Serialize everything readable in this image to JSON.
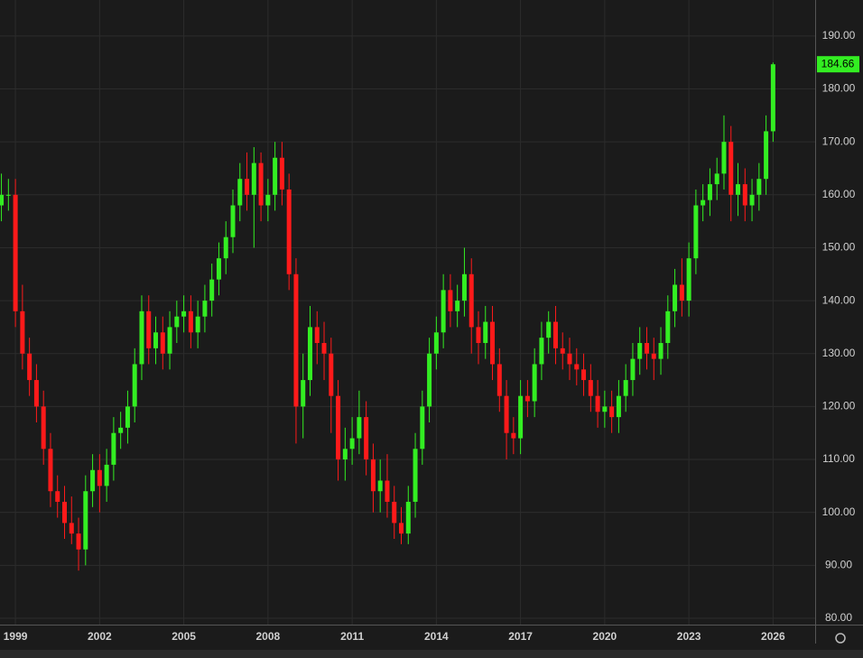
{
  "chart_data": {
    "type": "candlestick",
    "up_color": "#33ee22",
    "down_color": "#ff1a1a",
    "grid": true,
    "xlim": [
      1998.45,
      2027.5
    ],
    "ylim": [
      78.8,
      196.8
    ],
    "xticks": [
      1999,
      2002,
      2005,
      2008,
      2011,
      2014,
      2017,
      2020,
      2023,
      2026
    ],
    "yticks": [
      {
        "value": 80,
        "label": "80.00"
      },
      {
        "value": 90,
        "label": "90.00"
      },
      {
        "value": 100,
        "label": "100.00"
      },
      {
        "value": 110,
        "label": "110.00"
      },
      {
        "value": 120,
        "label": "120.00"
      },
      {
        "value": 130,
        "label": "130.00"
      },
      {
        "value": 140,
        "label": "140.00"
      },
      {
        "value": 150,
        "label": "150.00"
      },
      {
        "value": 160,
        "label": "160.00"
      },
      {
        "value": 170,
        "label": "170.00"
      },
      {
        "value": 180,
        "label": "180.00"
      },
      {
        "value": 190,
        "label": "190.00"
      }
    ],
    "x": [
      1998.5,
      1998.75,
      1999,
      1999.25,
      1999.5,
      1999.75,
      2000,
      2000.25,
      2000.5,
      2000.75,
      2001,
      2001.25,
      2001.5,
      2001.75,
      2002,
      2002.25,
      2002.5,
      2002.75,
      2003,
      2003.25,
      2003.5,
      2003.75,
      2004,
      2004.25,
      2004.5,
      2004.75,
      2005,
      2005.25,
      2005.5,
      2005.75,
      2006,
      2006.25,
      2006.5,
      2006.75,
      2007,
      2007.25,
      2007.5,
      2007.75,
      2008,
      2008.25,
      2008.5,
      2008.75,
      2009,
      2009.25,
      2009.5,
      2009.75,
      2010,
      2010.25,
      2010.5,
      2010.75,
      2011,
      2011.25,
      2011.5,
      2011.75,
      2012,
      2012.25,
      2012.5,
      2012.75,
      2013,
      2013.25,
      2013.5,
      2013.75,
      2014,
      2014.25,
      2014.5,
      2014.75,
      2015,
      2015.25,
      2015.5,
      2015.75,
      2016,
      2016.25,
      2016.5,
      2016.75,
      2017,
      2017.25,
      2017.5,
      2017.75,
      2018,
      2018.25,
      2018.5,
      2018.75,
      2019,
      2019.25,
      2019.5,
      2019.75,
      2020,
      2020.25,
      2020.5,
      2020.75,
      2021,
      2021.25,
      2021.5,
      2021.75,
      2022,
      2022.25,
      2022.5,
      2022.75,
      2023,
      2023.25,
      2023.5,
      2023.75,
      2024,
      2024.25,
      2024.5,
      2024.75,
      2025,
      2025.25,
      2025.5,
      2025.75,
      2026
    ],
    "open": [
      158,
      160,
      160,
      138,
      130,
      125,
      120,
      112,
      104,
      102,
      98,
      96,
      93,
      104,
      108,
      105,
      109,
      115,
      116,
      120,
      128,
      138,
      131,
      134,
      130,
      135,
      137,
      138,
      134,
      137,
      140,
      144,
      148,
      152,
      158,
      163,
      160,
      166,
      158,
      160,
      167,
      161,
      145,
      120,
      125,
      135,
      132,
      130,
      122,
      110,
      112,
      114,
      118,
      110,
      104,
      106,
      102,
      98,
      96,
      102,
      112,
      120,
      130,
      134,
      142,
      138,
      140,
      145,
      135,
      132,
      136,
      128,
      122,
      115,
      114,
      122,
      121,
      128,
      133,
      136,
      131,
      130,
      128,
      127,
      125,
      122,
      119,
      120,
      118,
      122,
      125,
      129,
      132,
      130,
      129,
      132,
      138,
      143,
      140,
      148,
      158,
      159,
      162,
      164,
      170,
      160,
      162,
      158,
      160,
      163,
      172
    ],
    "high": [
      164,
      163,
      163,
      143,
      133,
      128,
      123,
      115,
      107,
      105,
      103,
      99,
      107,
      111,
      111,
      112,
      118,
      119,
      123,
      131,
      141,
      141,
      137,
      137,
      138,
      140,
      141,
      141,
      140,
      143,
      147,
      151,
      155,
      161,
      166,
      168,
      169,
      168,
      163,
      170,
      170,
      164,
      148,
      130,
      139,
      138,
      136,
      133,
      125,
      116,
      118,
      123,
      121,
      113,
      110,
      111,
      105,
      101,
      105,
      115,
      123,
      133,
      137,
      145,
      145,
      143,
      150,
      148,
      138,
      139,
      139,
      131,
      125,
      118,
      125,
      125,
      131,
      136,
      138,
      139,
      134,
      133,
      131,
      130,
      128,
      125,
      123,
      123,
      125,
      128,
      132,
      135,
      135,
      133,
      135,
      141,
      146,
      148,
      151,
      161,
      162,
      165,
      167,
      175,
      173,
      166,
      165,
      163,
      166,
      175,
      185
    ],
    "low": [
      155,
      157,
      135,
      127,
      122,
      117,
      109,
      101,
      99,
      95,
      94,
      89,
      90,
      101,
      100,
      102,
      106,
      112,
      113,
      117,
      125,
      128,
      128,
      127,
      127,
      132,
      134,
      131,
      131,
      134,
      137,
      141,
      145,
      149,
      155,
      157,
      150,
      155,
      155,
      157,
      158,
      142,
      113,
      114,
      122,
      128,
      125,
      115,
      106,
      106,
      109,
      111,
      107,
      100,
      100,
      99,
      95,
      94,
      94,
      99,
      109,
      117,
      127,
      131,
      135,
      135,
      137,
      130,
      128,
      129,
      125,
      119,
      110,
      111,
      111,
      118,
      118,
      125,
      130,
      128,
      127,
      125,
      124,
      122,
      119,
      116,
      116,
      115,
      115,
      119,
      122,
      126,
      127,
      125,
      126,
      129,
      135,
      137,
      137,
      145,
      155,
      156,
      159,
      161,
      155,
      156,
      155,
      155,
      157,
      160,
      170
    ],
    "close": [
      160,
      160,
      138,
      130,
      125,
      120,
      112,
      104,
      102,
      98,
      96,
      93,
      104,
      108,
      105,
      109,
      115,
      116,
      120,
      128,
      138,
      131,
      134,
      130,
      135,
      137,
      138,
      134,
      137,
      140,
      144,
      148,
      152,
      158,
      163,
      160,
      166,
      158,
      160,
      167,
      161,
      145,
      120,
      125,
      135,
      132,
      130,
      122,
      110,
      112,
      114,
      118,
      110,
      104,
      106,
      102,
      98,
      96,
      102,
      112,
      120,
      130,
      134,
      142,
      138,
      140,
      145,
      135,
      132,
      136,
      128,
      122,
      115,
      114,
      122,
      121,
      128,
      133,
      136,
      131,
      130,
      128,
      127,
      125,
      122,
      119,
      120,
      118,
      122,
      125,
      129,
      132,
      130,
      129,
      132,
      138,
      143,
      140,
      148,
      158,
      159,
      162,
      164,
      170,
      160,
      162,
      158,
      160,
      163,
      172,
      184.66
    ]
  }
}
